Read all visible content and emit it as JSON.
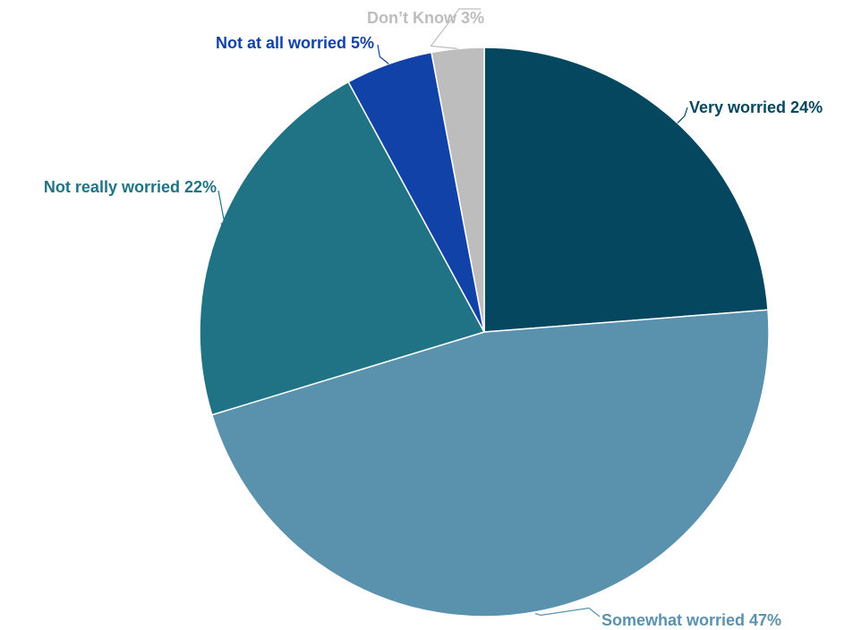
{
  "chart_data": {
    "type": "pie",
    "title": "",
    "unit": "%",
    "slices": [
      {
        "label": "Very worried 24%",
        "category": "Very worried",
        "value": 24,
        "color": "#04475f"
      },
      {
        "label": "Somewhat worried 47%",
        "category": "Somewhat worried",
        "value": 47,
        "color": "#5a92ae"
      },
      {
        "label": "Not really worried 22%",
        "category": "Not really worried",
        "value": 22,
        "color": "#1f7384"
      },
      {
        "label": "Not at all worried 5%",
        "category": "Not at all worried",
        "value": 5,
        "color": "#1142a8"
      },
      {
        "label": "Don’t Know 3%",
        "category": "Don’t Know",
        "value": 3,
        "color": "#bdbdbd"
      }
    ],
    "label_colors": [
      "#04475f",
      "#5a92ae",
      "#1f7384",
      "#1142a8",
      "#bdbdbd"
    ],
    "start_angle": "12 o'clock",
    "direction": "clockwise",
    "legend": "none",
    "labels": "outside with leader lines"
  }
}
